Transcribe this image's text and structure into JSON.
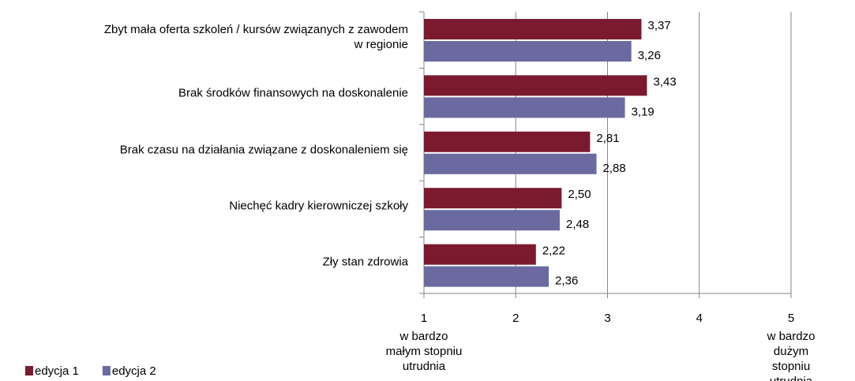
{
  "chart_data": {
    "type": "bar",
    "orientation": "horizontal",
    "categories": [
      "Zbyt mała oferta szkoleń / kursów związanych z zawodem\nw regionie",
      "Brak środków finansowych na doskonalenie",
      "Brak czasu na działania związane z doskonaleniem się",
      "Niechęć kadry kierowniczej szkoły",
      "Zły stan zdrowia"
    ],
    "series": [
      {
        "name": "edycja 1",
        "color": "#7b1a2e",
        "values": [
          3.37,
          3.43,
          2.81,
          2.5,
          2.22
        ],
        "value_labels": [
          "3,37",
          "3,43",
          "2,81",
          "2,50",
          "2,22"
        ]
      },
      {
        "name": "edycja 2",
        "color": "#6b6aa0",
        "values": [
          3.26,
          3.19,
          2.88,
          2.48,
          2.36
        ],
        "value_labels": [
          "3,26",
          "3,19",
          "2,88",
          "2,48",
          "2,36"
        ]
      }
    ],
    "xlim": [
      1,
      5
    ],
    "xticks": [
      1,
      2,
      3,
      4,
      5
    ],
    "grid": true,
    "legend": "bottom-left",
    "annotations": [
      {
        "x": 1,
        "text": "w bardzo\nmałym stopniu\nutrudnia"
      },
      {
        "x": 5,
        "text": "w bardzo\ndużym stopniu\nutrudnia"
      }
    ]
  }
}
